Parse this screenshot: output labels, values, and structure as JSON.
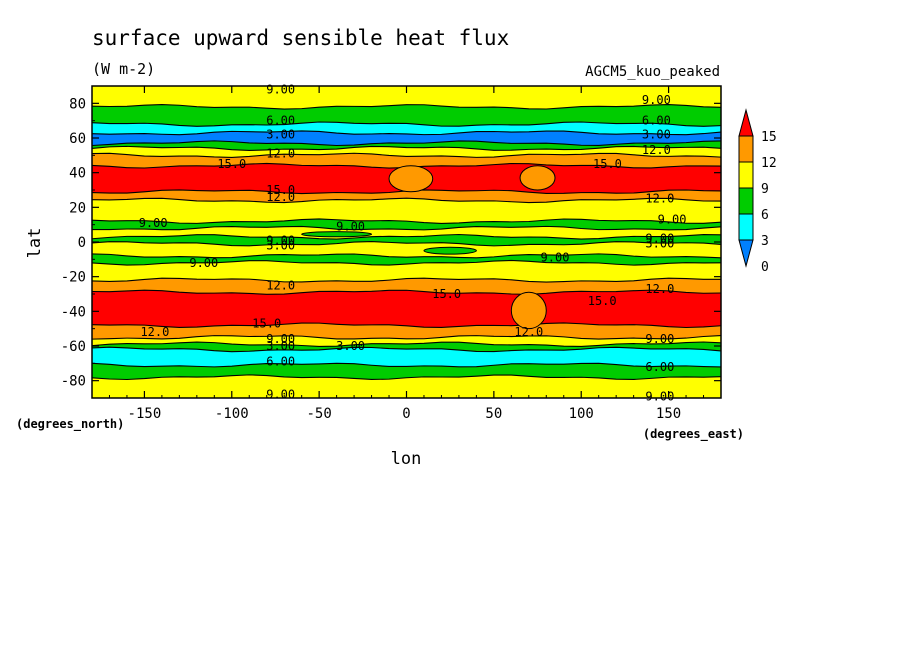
{
  "chart_data": {
    "type": "heatmap",
    "title": "surface upward sensible heat flux",
    "subtitle": "(W m-2)",
    "model_label": "AGCM5_kuo_peaked",
    "xlabel": "lon",
    "ylabel": "lat",
    "x_units_note": "(degrees_east)",
    "y_units_note": "(degrees_north)",
    "xlim": [
      -180,
      180
    ],
    "ylim": [
      -90,
      90
    ],
    "x_ticks": [
      -150,
      -100,
      -50,
      0,
      50,
      100,
      150
    ],
    "x_tick_labels": [
      "-150",
      "-100",
      "-50",
      "0",
      "50",
      "100",
      "150"
    ],
    "y_ticks": [
      -80,
      -60,
      -40,
      -20,
      0,
      20,
      40,
      60,
      80
    ],
    "y_tick_labels": [
      "-80",
      "-60",
      "-40",
      "-20",
      "0",
      "20",
      "40",
      "60",
      "80"
    ],
    "levels": [
      0,
      3,
      6,
      9,
      12,
      15
    ],
    "level_labels": [
      "0",
      "3",
      "6",
      "9",
      "12",
      "15"
    ],
    "fill_colors": [
      "#0080ff",
      "#00ffff",
      "#00cc00",
      "#ffff00",
      "#ff9900",
      "#ff0000"
    ],
    "colorbar": "right-vertical-triangles",
    "contour_labels": [
      {
        "text": "9.00",
        "lon": -72,
        "lat": 88
      },
      {
        "text": "9.00",
        "lon": 143,
        "lat": 82
      },
      {
        "text": "6.00",
        "lon": -72,
        "lat": 70
      },
      {
        "text": "6.00",
        "lon": 143,
        "lat": 70
      },
      {
        "text": "3.00",
        "lon": -72,
        "lat": 62
      },
      {
        "text": "3.00",
        "lon": 143,
        "lat": 62
      },
      {
        "text": "12.0",
        "lon": -72,
        "lat": 51
      },
      {
        "text": "12.0",
        "lon": 143,
        "lat": 53
      },
      {
        "text": "15.0",
        "lon": -100,
        "lat": 45
      },
      {
        "text": "15.0",
        "lon": 115,
        "lat": 45
      },
      {
        "text": "15.0",
        "lon": -72,
        "lat": 30
      },
      {
        "text": "12.0",
        "lon": -72,
        "lat": 26
      },
      {
        "text": "12.0",
        "lon": 145,
        "lat": 25
      },
      {
        "text": "9.00",
        "lon": -145,
        "lat": 11
      },
      {
        "text": "9.00",
        "lon": -32,
        "lat": 9
      },
      {
        "text": "9.00",
        "lon": 152,
        "lat": 13
      },
      {
        "text": "9.00",
        "lon": -72,
        "lat": 1
      },
      {
        "text": "9.00",
        "lon": 145,
        "lat": 2
      },
      {
        "text": "3.00",
        "lon": -72,
        "lat": -2
      },
      {
        "text": "3.00",
        "lon": 145,
        "lat": -1
      },
      {
        "text": "9.00",
        "lon": 85,
        "lat": -9
      },
      {
        "text": "9.00",
        "lon": -116,
        "lat": -12
      },
      {
        "text": "12.0",
        "lon": -72,
        "lat": -25
      },
      {
        "text": "12.0",
        "lon": 145,
        "lat": -27
      },
      {
        "text": "15.0",
        "lon": 23,
        "lat": -30
      },
      {
        "text": "15.0",
        "lon": 112,
        "lat": -34
      },
      {
        "text": "15.0",
        "lon": -80,
        "lat": -47
      },
      {
        "text": "12.0",
        "lon": -144,
        "lat": -52
      },
      {
        "text": "12.0",
        "lon": 70,
        "lat": -52
      },
      {
        "text": "9.00",
        "lon": -72,
        "lat": -56
      },
      {
        "text": "9.00",
        "lon": 145,
        "lat": -56
      },
      {
        "text": "3.00",
        "lon": -72,
        "lat": -60
      },
      {
        "text": "3.00",
        "lon": -32,
        "lat": -60
      },
      {
        "text": "6.00",
        "lon": 145,
        "lat": -72
      },
      {
        "text": "6.00",
        "lon": -72,
        "lat": -69
      },
      {
        "text": "9.00",
        "lon": -72,
        "lat": -88
      },
      {
        "text": "9.00",
        "lon": 145,
        "lat": -89
      }
    ],
    "zonal_bands": [
      {
        "lat_from": 90,
        "lat_to": 78,
        "level": 9
      },
      {
        "lat_from": 78,
        "lat_to": 68,
        "level": 6
      },
      {
        "lat_from": 68,
        "lat_to": 63,
        "level": 3
      },
      {
        "lat_from": 63,
        "lat_to": 57,
        "level": 0
      },
      {
        "lat_from": 57,
        "lat_to": 54,
        "level": 6
      },
      {
        "lat_from": 54,
        "lat_to": 50,
        "level": 9
      },
      {
        "lat_from": 50,
        "lat_to": 44,
        "level": 12
      },
      {
        "lat_from": 44,
        "lat_to": 29,
        "level": 15
      },
      {
        "lat_from": 29,
        "lat_to": 24,
        "level": 12
      },
      {
        "lat_from": 24,
        "lat_to": 12,
        "level": 9
      },
      {
        "lat_from": 12,
        "lat_to": 8,
        "level": 6
      },
      {
        "lat_from": 8,
        "lat_to": 3,
        "level": 9
      },
      {
        "lat_from": 3,
        "lat_to": -1,
        "level": 6
      },
      {
        "lat_from": -1,
        "lat_to": -8,
        "level": 9
      },
      {
        "lat_from": -8,
        "lat_to": -12,
        "level": 6
      },
      {
        "lat_from": -12,
        "lat_to": -22,
        "level": 9
      },
      {
        "lat_from": -22,
        "lat_to": -29,
        "level": 12
      },
      {
        "lat_from": -29,
        "lat_to": -48,
        "level": 15
      },
      {
        "lat_from": -48,
        "lat_to": -55,
        "level": 12
      },
      {
        "lat_from": -55,
        "lat_to": -59,
        "level": 9
      },
      {
        "lat_from": -59,
        "lat_to": -62,
        "level": 6
      },
      {
        "lat_from": -62,
        "lat_to": -71,
        "level": 3
      },
      {
        "lat_from": -71,
        "lat_to": -78,
        "level": 6
      },
      {
        "lat_from": -78,
        "lat_to": -90,
        "level": 9
      }
    ],
    "patches": [
      {
        "lon_from": -10,
        "lon_to": 15,
        "lat_from": 44,
        "lat_to": 29,
        "level": 12
      },
      {
        "lon_from": 65,
        "lon_to": 85,
        "lat_from": 44,
        "lat_to": 30,
        "level": 12
      },
      {
        "lon_from": 60,
        "lon_to": 80,
        "lat_from": -29,
        "lat_to": -50,
        "level": 12
      },
      {
        "lon_from": -60,
        "lon_to": -20,
        "lat_from": 6,
        "lat_to": 3,
        "level": 6
      },
      {
        "lon_from": 10,
        "lon_to": 40,
        "lat_from": -3,
        "lat_to": -7,
        "level": 6
      }
    ]
  }
}
